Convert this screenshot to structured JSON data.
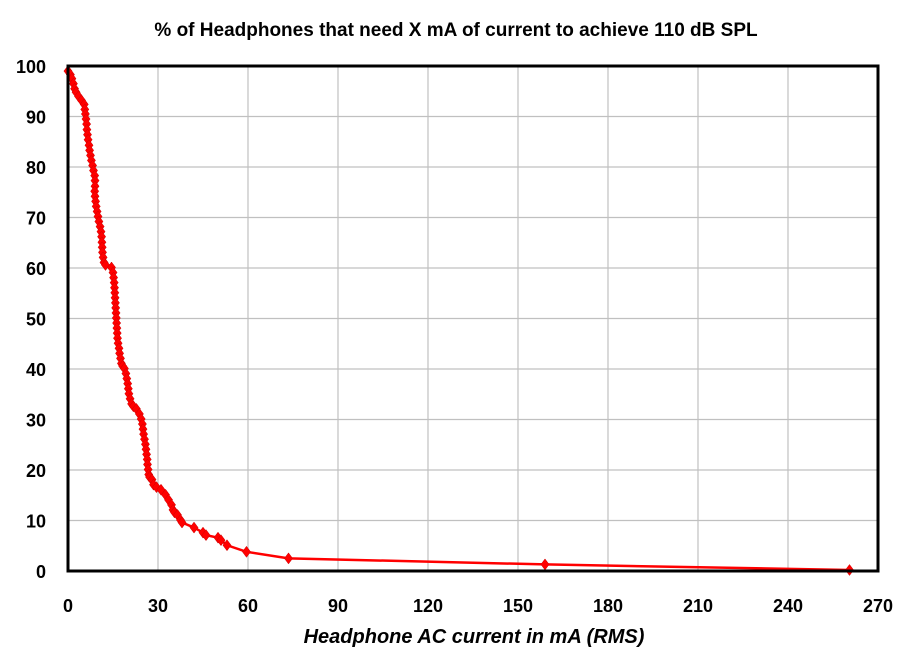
{
  "chart_data": {
    "type": "line",
    "title": "% of Headphones that need X mA of current to achieve 110 dB SPL",
    "xlabel": "Headphone AC current in mA (RMS)",
    "ylabel": "",
    "xlim": [
      0,
      270
    ],
    "ylim": [
      0,
      100
    ],
    "xticks": [
      0,
      30,
      60,
      90,
      120,
      150,
      180,
      210,
      240,
      270
    ],
    "yticks": [
      0,
      10,
      20,
      30,
      40,
      50,
      60,
      70,
      80,
      90,
      100
    ],
    "grid": true,
    "legend": "none",
    "series": [
      {
        "color": "#ff0000",
        "marker": "diamond",
        "points": [
          [
            0.0,
            99.0
          ],
          [
            0.8,
            98.3
          ],
          [
            1.3,
            97.5
          ],
          [
            1.8,
            96.5
          ],
          [
            2.2,
            95.5
          ],
          [
            2.7,
            94.8
          ],
          [
            3.5,
            94.0
          ],
          [
            4.5,
            93.2
          ],
          [
            5.4,
            92.4
          ],
          [
            5.6,
            91.4
          ],
          [
            5.8,
            90.5
          ],
          [
            6.0,
            89.5
          ],
          [
            6.2,
            88.5
          ],
          [
            6.3,
            87.4
          ],
          [
            6.5,
            86.4
          ],
          [
            6.7,
            85.4
          ],
          [
            7.0,
            84.3
          ],
          [
            7.2,
            83.3
          ],
          [
            7.5,
            82.3
          ],
          [
            7.8,
            81.3
          ],
          [
            8.2,
            80.3
          ],
          [
            8.5,
            79.3
          ],
          [
            8.9,
            78.3
          ],
          [
            9.0,
            77.3
          ],
          [
            9.0,
            76.2
          ],
          [
            8.9,
            75.2
          ],
          [
            9.0,
            74.2
          ],
          [
            9.2,
            73.2
          ],
          [
            9.4,
            72.2
          ],
          [
            9.7,
            71.2
          ],
          [
            10.0,
            70.2
          ],
          [
            10.3,
            69.2
          ],
          [
            10.7,
            68.2
          ],
          [
            11.0,
            67.2
          ],
          [
            11.2,
            66.2
          ],
          [
            11.3,
            65.1
          ],
          [
            11.4,
            64.1
          ],
          [
            11.5,
            63.1
          ],
          [
            11.7,
            62.1
          ],
          [
            12.0,
            61.1
          ],
          [
            12.5,
            60.6
          ],
          [
            14.5,
            60.1
          ],
          [
            15.0,
            59.1
          ],
          [
            15.2,
            58.1
          ],
          [
            15.4,
            57.1
          ],
          [
            15.5,
            56.1
          ],
          [
            15.6,
            55.1
          ],
          [
            15.7,
            54.1
          ],
          [
            15.8,
            53.1
          ],
          [
            15.9,
            52.1
          ],
          [
            16.0,
            51.1
          ],
          [
            16.1,
            50.1
          ],
          [
            16.2,
            49.1
          ],
          [
            16.3,
            48.1
          ],
          [
            16.4,
            47.1
          ],
          [
            16.5,
            46.1
          ],
          [
            16.7,
            45.1
          ],
          [
            17.0,
            44.1
          ],
          [
            17.2,
            43.1
          ],
          [
            17.5,
            42.1
          ],
          [
            17.8,
            41.1
          ],
          [
            18.2,
            40.6
          ],
          [
            18.8,
            40.1
          ],
          [
            19.3,
            39.1
          ],
          [
            19.6,
            38.1
          ],
          [
            19.9,
            37.1
          ],
          [
            20.1,
            36.1
          ],
          [
            20.3,
            35.1
          ],
          [
            20.7,
            34.1
          ],
          [
            21.2,
            33.1
          ],
          [
            21.8,
            32.6
          ],
          [
            22.8,
            32.1
          ],
          [
            23.8,
            31.1
          ],
          [
            24.4,
            30.1
          ],
          [
            24.8,
            29.1
          ],
          [
            25.0,
            28.1
          ],
          [
            25.2,
            27.1
          ],
          [
            25.5,
            26.1
          ],
          [
            25.8,
            25.1
          ],
          [
            26.0,
            24.1
          ],
          [
            26.2,
            23.1
          ],
          [
            26.4,
            22.1
          ],
          [
            26.5,
            21.1
          ],
          [
            26.7,
            20.1
          ],
          [
            26.9,
            19.1
          ],
          [
            27.2,
            18.6
          ],
          [
            28.0,
            18.1
          ],
          [
            28.5,
            17.1
          ],
          [
            29.5,
            16.6
          ],
          [
            31.0,
            16.1
          ],
          [
            32.5,
            15.1
          ],
          [
            33.5,
            14.1
          ],
          [
            34.5,
            13.1
          ],
          [
            35.0,
            12.1
          ],
          [
            35.5,
            11.6
          ],
          [
            36.5,
            11.1
          ],
          [
            37.5,
            10.1
          ],
          [
            38.0,
            9.6
          ],
          [
            42.0,
            8.6
          ],
          [
            45.0,
            7.6
          ],
          [
            46.0,
            7.1
          ],
          [
            50.0,
            6.6
          ],
          [
            51.0,
            6.1
          ],
          [
            53.0,
            5.1
          ],
          [
            59.5,
            3.8
          ],
          [
            73.5,
            2.5
          ],
          [
            159.0,
            1.3
          ],
          [
            260.5,
            0.2
          ]
        ]
      }
    ]
  }
}
